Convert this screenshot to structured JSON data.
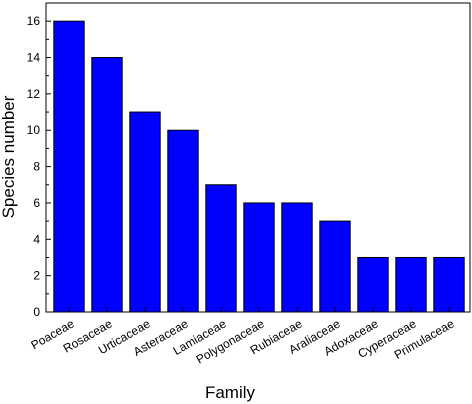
{
  "chart_data": {
    "type": "bar",
    "title": "",
    "xlabel": "Family",
    "ylabel": "Species number",
    "categories": [
      "Poaceae",
      "Rosaceae",
      "Urticaceae",
      "Asteraceae",
      "Lamiaceae",
      "Polygonaceae",
      "Rubiaceae",
      "Araliaceae",
      "Adoxaceae",
      "Cyperaceae",
      "Primulaceae"
    ],
    "values": [
      16,
      14,
      11,
      10,
      7,
      6,
      6,
      5,
      3,
      3,
      3
    ],
    "ylim": [
      0,
      17
    ],
    "yticks": [
      "0",
      "2",
      "4",
      "6",
      "8",
      "10",
      "12",
      "14",
      "16"
    ],
    "bar_color": "#0000ff",
    "bar_edge_color": "#000000",
    "grid": false
  }
}
